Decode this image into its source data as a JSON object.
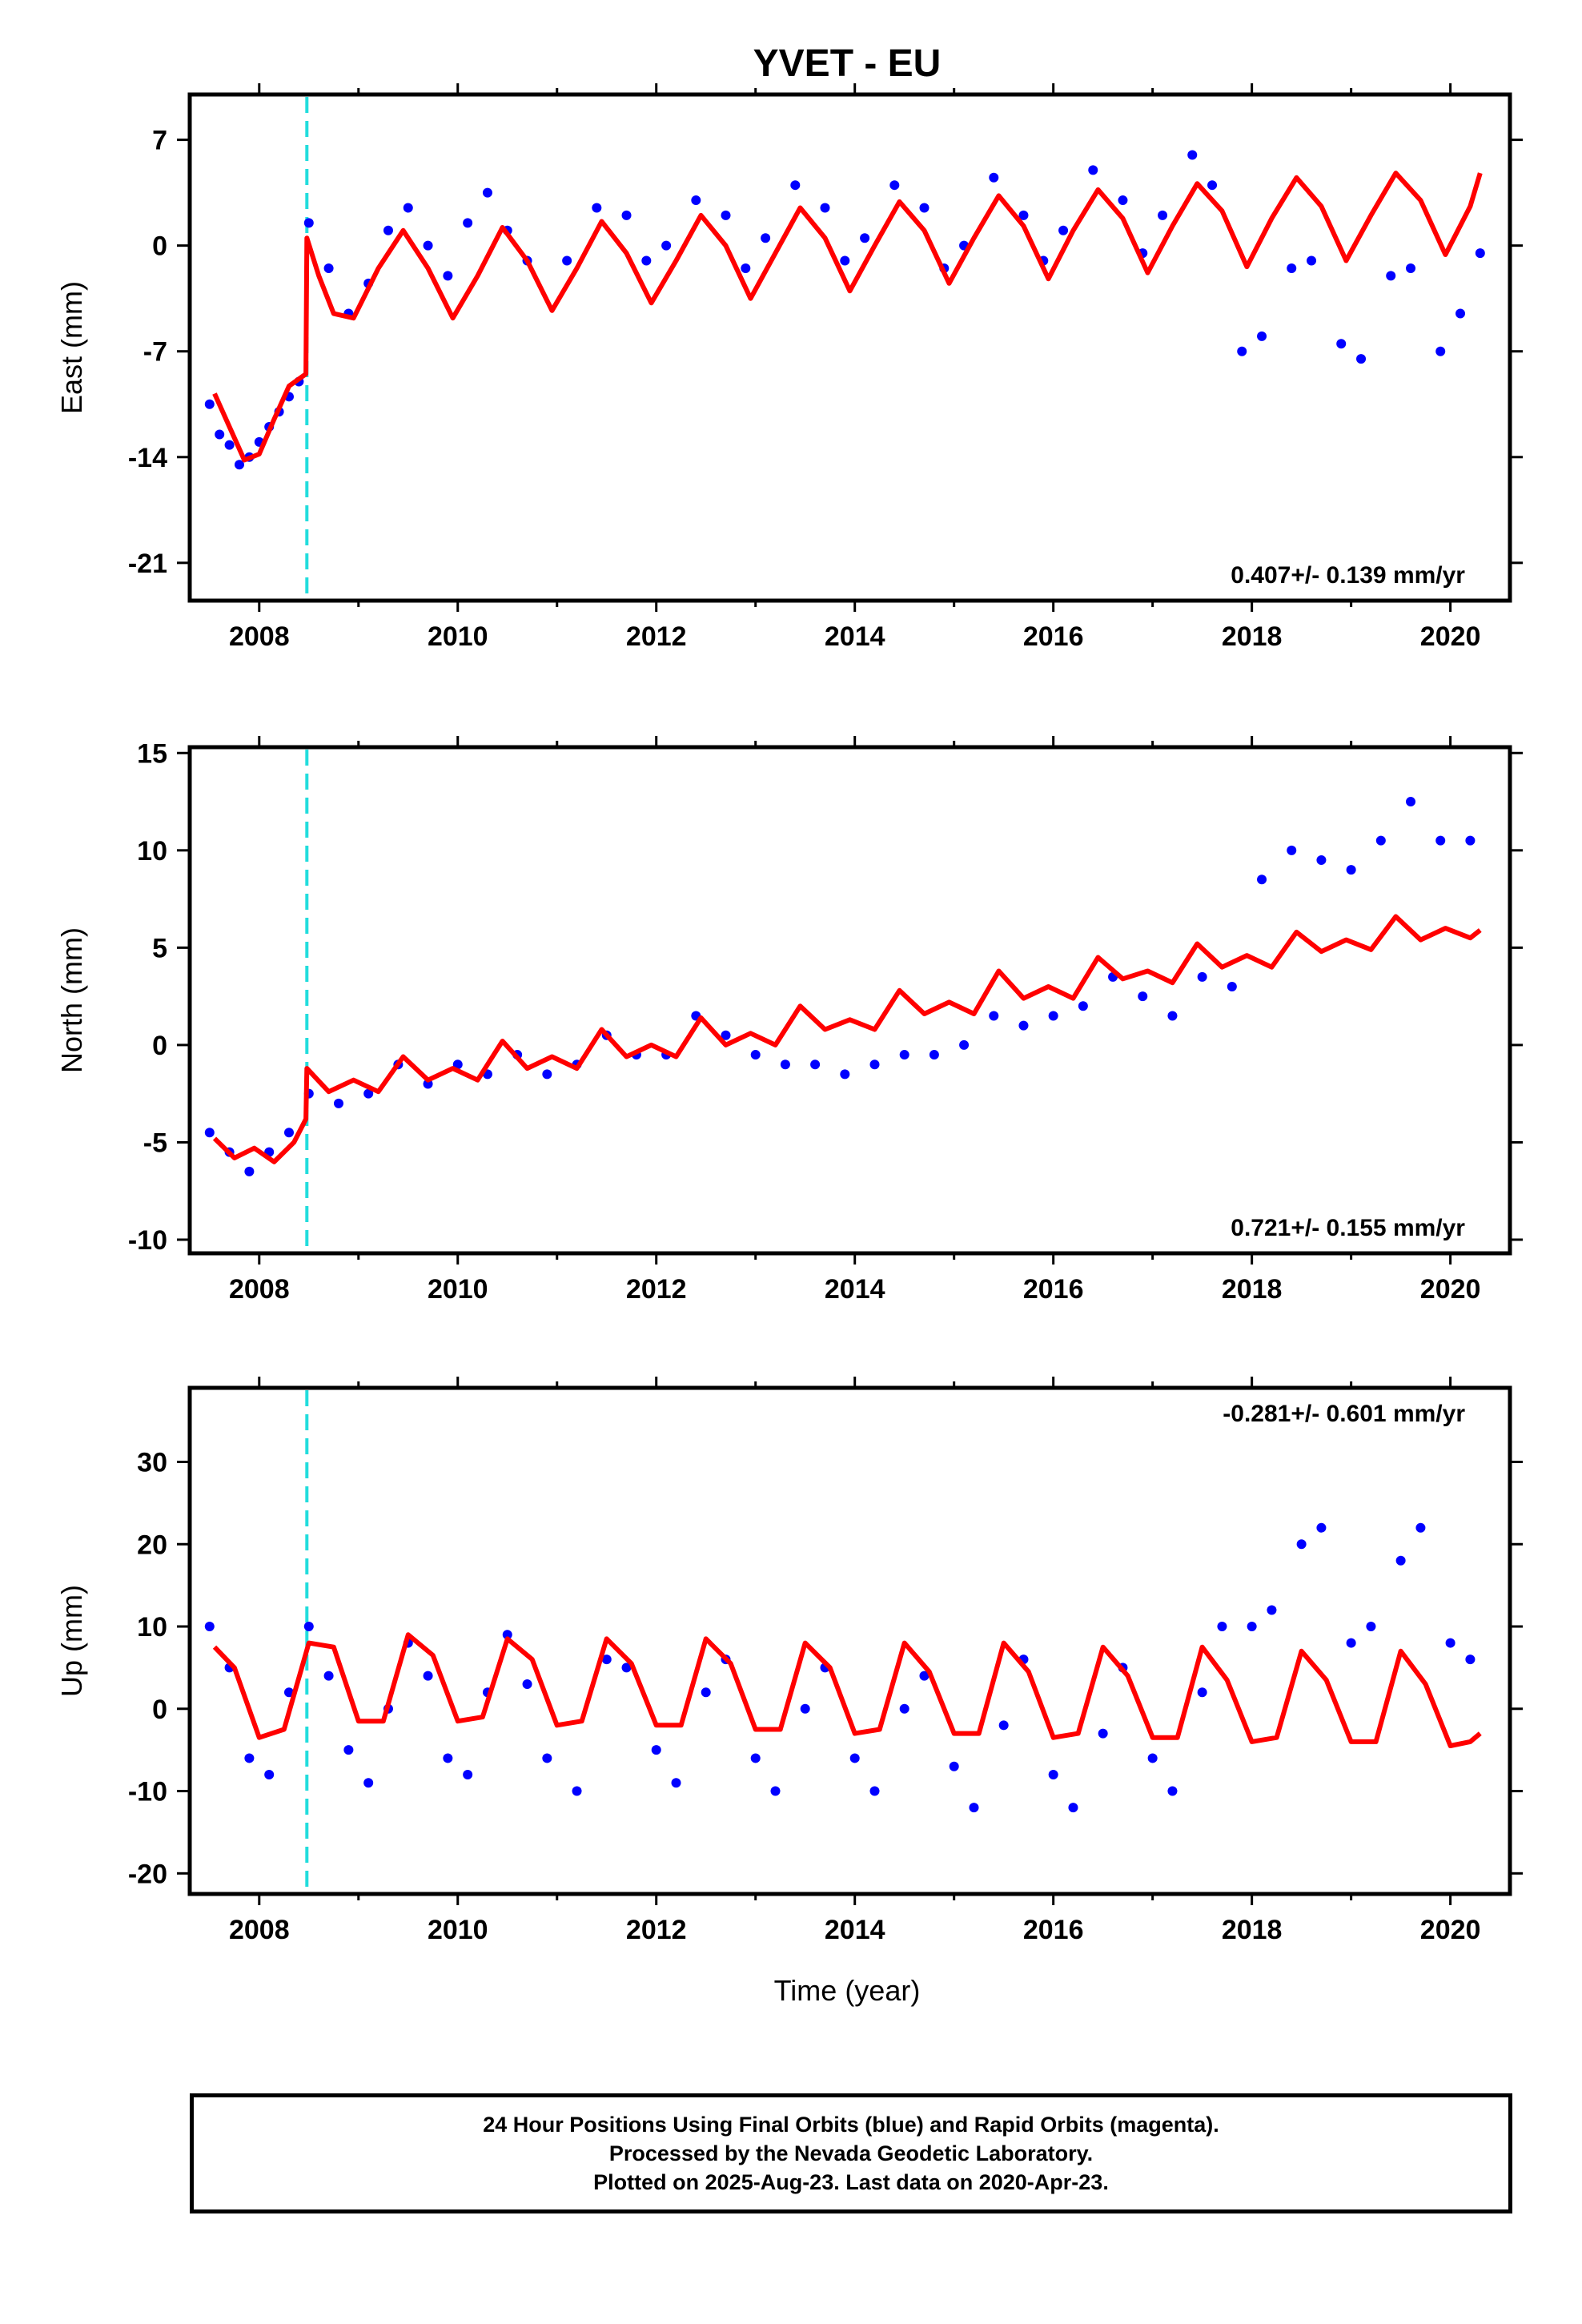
{
  "title": "YVET - EU",
  "xlabel": "Time (year)",
  "colors": {
    "points": "#0000ff",
    "model": "#ff0000",
    "event_line": "#22dddd",
    "frame": "#000000"
  },
  "chart_data": [
    {
      "type": "scatter",
      "panel": "east",
      "ylabel": "East (mm)",
      "rate_label": "0.407+/- 0.139 mm/yr",
      "rate_position": "bottom-right",
      "xlim": [
        2007.3,
        2020.6
      ],
      "ylim": [
        -23.5,
        10
      ],
      "yticks": [
        7,
        0,
        -7,
        -14,
        -21
      ],
      "xticks": [
        2008,
        2010,
        2012,
        2014,
        2016,
        2018,
        2020
      ],
      "event_line_x": 2008.48,
      "series": [
        {
          "name": "Final Orbits",
          "style": "points",
          "x": [
            2007.5,
            2007.6,
            2007.7,
            2007.8,
            2007.9,
            2008.0,
            2008.1,
            2008.2,
            2008.3,
            2008.4,
            2008.5,
            2008.7,
            2008.9,
            2009.1,
            2009.3,
            2009.5,
            2009.7,
            2009.9,
            2010.1,
            2010.3,
            2010.5,
            2010.7,
            2011.1,
            2011.4,
            2011.7,
            2011.9,
            2012.1,
            2012.4,
            2012.7,
            2012.9,
            2013.1,
            2013.4,
            2013.7,
            2013.9,
            2014.1,
            2014.4,
            2014.7,
            2014.9,
            2015.1,
            2015.4,
            2015.7,
            2015.9,
            2016.1,
            2016.4,
            2016.7,
            2016.9,
            2017.1,
            2017.4,
            2017.6,
            2017.9,
            2018.1,
            2018.4,
            2018.6,
            2018.9,
            2019.1,
            2019.4,
            2019.6,
            2019.9,
            2020.1,
            2020.3
          ],
          "y": [
            -10.5,
            -12.5,
            -13.2,
            -14.5,
            -14.0,
            -13.0,
            -12.0,
            -11.0,
            -10.0,
            -9.0,
            1.5,
            -1.5,
            -4.5,
            -2.5,
            1.0,
            2.5,
            0.0,
            -2.0,
            1.5,
            3.5,
            1.0,
            -1.0,
            -1.0,
            2.5,
            2.0,
            -1.0,
            0.0,
            3.0,
            2.0,
            -1.5,
            0.5,
            4.0,
            2.5,
            -1.0,
            0.5,
            4.0,
            2.5,
            -1.5,
            0.0,
            4.5,
            2.0,
            -1.0,
            1.0,
            5.0,
            3.0,
            -0.5,
            2.0,
            6.0,
            4.0,
            -7.0,
            -6.0,
            -1.5,
            -1.0,
            -6.5,
            -7.5,
            -2.0,
            -1.5,
            -7.0,
            -4.5,
            -0.5
          ]
        },
        {
          "name": "Model",
          "style": "line",
          "x": [
            2007.55,
            2007.7,
            2007.85,
            2008.0,
            2008.15,
            2008.3,
            2008.47,
            2008.48,
            2008.6,
            2008.75,
            2008.95,
            2009.2,
            2009.45,
            2009.7,
            2009.95,
            2010.2,
            2010.45,
            2010.7,
            2010.95,
            2011.2,
            2011.45,
            2011.7,
            2011.95,
            2012.2,
            2012.45,
            2012.7,
            2012.95,
            2013.2,
            2013.45,
            2013.7,
            2013.95,
            2014.2,
            2014.45,
            2014.7,
            2014.95,
            2015.2,
            2015.45,
            2015.7,
            2015.95,
            2016.2,
            2016.45,
            2016.7,
            2016.95,
            2017.2,
            2017.45,
            2017.7,
            2017.95,
            2018.2,
            2018.45,
            2018.7,
            2018.95,
            2019.2,
            2019.45,
            2019.7,
            2019.95,
            2020.2,
            2020.3
          ],
          "y": [
            -9.8,
            -12.0,
            -14.2,
            -13.8,
            -11.5,
            -9.3,
            -8.5,
            0.5,
            -2.0,
            -4.5,
            -4.8,
            -1.5,
            1.0,
            -1.5,
            -4.8,
            -2.0,
            1.2,
            -1.0,
            -4.3,
            -1.5,
            1.6,
            -0.5,
            -3.8,
            -1.0,
            2.0,
            0.0,
            -3.5,
            -0.5,
            2.5,
            0.5,
            -3.0,
            0.0,
            2.9,
            1.0,
            -2.5,
            0.5,
            3.3,
            1.3,
            -2.2,
            1.0,
            3.7,
            1.8,
            -1.8,
            1.3,
            4.1,
            2.3,
            -1.4,
            1.8,
            4.5,
            2.6,
            -1.0,
            2.0,
            4.8,
            3.0,
            -0.6,
            2.6,
            4.8
          ]
        }
      ]
    },
    {
      "type": "scatter",
      "panel": "north",
      "ylabel": "North (mm)",
      "rate_label": "0.721+/- 0.155 mm/yr",
      "rate_position": "bottom-right",
      "xlim": [
        2007.3,
        2020.6
      ],
      "ylim": [
        -10.7,
        15.3
      ],
      "yticks": [
        15,
        10,
        5,
        0,
        -5,
        -10
      ],
      "xticks": [
        2008,
        2010,
        2012,
        2014,
        2016,
        2018,
        2020
      ],
      "event_line_x": 2008.48,
      "series": [
        {
          "name": "Final Orbits",
          "style": "points",
          "x": [
            2007.5,
            2007.7,
            2007.9,
            2008.1,
            2008.3,
            2008.5,
            2008.8,
            2009.1,
            2009.4,
            2009.7,
            2010.0,
            2010.3,
            2010.6,
            2010.9,
            2011.2,
            2011.5,
            2011.8,
            2012.1,
            2012.4,
            2012.7,
            2013.0,
            2013.3,
            2013.6,
            2013.9,
            2014.2,
            2014.5,
            2014.8,
            2015.1,
            2015.4,
            2015.7,
            2016.0,
            2016.3,
            2016.6,
            2016.9,
            2017.2,
            2017.5,
            2017.8,
            2018.1,
            2018.4,
            2018.7,
            2019.0,
            2019.3,
            2019.6,
            2019.9,
            2020.2
          ],
          "y": [
            -4.5,
            -5.5,
            -6.5,
            -5.5,
            -4.5,
            -2.5,
            -3.0,
            -2.5,
            -1.0,
            -2.0,
            -1.0,
            -1.5,
            -0.5,
            -1.5,
            -1.0,
            0.5,
            -0.5,
            -0.5,
            1.5,
            0.5,
            -0.5,
            -1.0,
            -1.0,
            -1.5,
            -1.0,
            -0.5,
            -0.5,
            0.0,
            1.5,
            1.0,
            1.5,
            2.0,
            3.5,
            2.5,
            1.5,
            3.5,
            3.0,
            8.5,
            10.0,
            9.5,
            9.0,
            10.5,
            12.5,
            10.5,
            10.5
          ]
        },
        {
          "name": "Model",
          "style": "line",
          "x": [
            2007.55,
            2007.75,
            2007.95,
            2008.15,
            2008.35,
            2008.47,
            2008.48,
            2008.7,
            2008.95,
            2009.2,
            2009.45,
            2009.7,
            2009.95,
            2010.2,
            2010.45,
            2010.7,
            2010.95,
            2011.2,
            2011.45,
            2011.7,
            2011.95,
            2012.2,
            2012.45,
            2012.7,
            2012.95,
            2013.2,
            2013.45,
            2013.7,
            2013.95,
            2014.2,
            2014.45,
            2014.7,
            2014.95,
            2015.2,
            2015.45,
            2015.7,
            2015.95,
            2016.2,
            2016.45,
            2016.7,
            2016.95,
            2017.2,
            2017.45,
            2017.7,
            2017.95,
            2018.2,
            2018.45,
            2018.7,
            2018.95,
            2019.2,
            2019.45,
            2019.7,
            2019.95,
            2020.2,
            2020.3
          ],
          "y": [
            -4.8,
            -5.8,
            -5.3,
            -6.0,
            -5.0,
            -3.8,
            -1.2,
            -2.4,
            -1.8,
            -2.4,
            -0.6,
            -1.8,
            -1.2,
            -1.8,
            0.2,
            -1.2,
            -0.6,
            -1.2,
            0.8,
            -0.6,
            0.0,
            -0.6,
            1.4,
            0.0,
            0.6,
            0.0,
            2.0,
            0.8,
            1.3,
            0.8,
            2.8,
            1.6,
            2.2,
            1.6,
            3.8,
            2.4,
            3.0,
            2.4,
            4.5,
            3.4,
            3.8,
            3.2,
            5.2,
            4.0,
            4.6,
            4.0,
            5.8,
            4.8,
            5.4,
            4.9,
            6.6,
            5.4,
            6.0,
            5.5,
            5.9
          ]
        }
      ]
    },
    {
      "type": "scatter",
      "panel": "up",
      "ylabel": "Up (mm)",
      "rate_label": "-0.281+/- 0.601 mm/yr",
      "rate_position": "top-right",
      "xlim": [
        2007.3,
        2020.6
      ],
      "ylim": [
        -22.5,
        39
      ],
      "yticks": [
        30,
        20,
        10,
        0,
        -10,
        -20
      ],
      "xticks": [
        2008,
        2010,
        2012,
        2014,
        2016,
        2018,
        2020
      ],
      "event_line_x": 2008.48,
      "series": [
        {
          "name": "Final Orbits",
          "style": "points",
          "x": [
            2007.5,
            2007.7,
            2007.9,
            2008.1,
            2008.3,
            2008.5,
            2008.7,
            2008.9,
            2009.1,
            2009.3,
            2009.5,
            2009.7,
            2009.9,
            2010.1,
            2010.3,
            2010.5,
            2010.7,
            2010.9,
            2011.2,
            2011.5,
            2011.7,
            2012.0,
            2012.2,
            2012.5,
            2012.7,
            2013.0,
            2013.2,
            2013.5,
            2013.7,
            2014.0,
            2014.2,
            2014.5,
            2014.7,
            2015.0,
            2015.2,
            2015.5,
            2015.7,
            2016.0,
            2016.2,
            2016.5,
            2016.7,
            2017.0,
            2017.2,
            2017.5,
            2017.7,
            2018.0,
            2018.2,
            2018.5,
            2018.7,
            2019.0,
            2019.2,
            2019.5,
            2019.7,
            2020.0,
            2020.2
          ],
          "y": [
            10.0,
            5.0,
            -6.0,
            -8.0,
            2.0,
            10.0,
            4.0,
            -5.0,
            -9.0,
            0.0,
            8.0,
            4.0,
            -6.0,
            -8.0,
            2.0,
            9.0,
            3.0,
            -6.0,
            -10.0,
            6.0,
            5.0,
            -5.0,
            -9.0,
            2.0,
            6.0,
            -6.0,
            -10.0,
            0.0,
            5.0,
            -6.0,
            -10.0,
            0.0,
            4.0,
            -7.0,
            -12.0,
            -2.0,
            6.0,
            -8.0,
            -12.0,
            -3.0,
            5.0,
            -6.0,
            -10.0,
            2.0,
            10.0,
            10.0,
            12.0,
            20.0,
            22.0,
            8.0,
            10.0,
            18.0,
            22.0,
            8.0,
            6.0
          ]
        },
        {
          "name": "Model",
          "style": "line",
          "x": [
            2007.55,
            2007.75,
            2008.0,
            2008.25,
            2008.5,
            2008.75,
            2009.0,
            2009.25,
            2009.5,
            2009.75,
            2010.0,
            2010.25,
            2010.5,
            2010.75,
            2011.0,
            2011.25,
            2011.5,
            2011.75,
            2012.0,
            2012.25,
            2012.5,
            2012.75,
            2013.0,
            2013.25,
            2013.5,
            2013.75,
            2014.0,
            2014.25,
            2014.5,
            2014.75,
            2015.0,
            2015.25,
            2015.5,
            2015.75,
            2016.0,
            2016.25,
            2016.5,
            2016.75,
            2017.0,
            2017.25,
            2017.5,
            2017.75,
            2018.0,
            2018.25,
            2018.5,
            2018.75,
            2019.0,
            2019.25,
            2019.5,
            2019.75,
            2020.0,
            2020.2,
            2020.3
          ],
          "y": [
            7.5,
            5.0,
            -3.5,
            -2.5,
            8.0,
            7.5,
            -1.5,
            -1.5,
            9.0,
            6.5,
            -1.5,
            -1.0,
            8.5,
            6.0,
            -2.0,
            -1.5,
            8.5,
            5.5,
            -2.0,
            -2.0,
            8.5,
            5.5,
            -2.5,
            -2.5,
            8.0,
            5.0,
            -3.0,
            -2.5,
            8.0,
            4.5,
            -3.0,
            -3.0,
            8.0,
            4.5,
            -3.5,
            -3.0,
            7.5,
            4.0,
            -3.5,
            -3.5,
            7.5,
            3.5,
            -4.0,
            -3.5,
            7.0,
            3.5,
            -4.0,
            -4.0,
            7.0,
            3.0,
            -4.5,
            -4.0,
            -3.0
          ]
        }
      ]
    }
  ],
  "footer": {
    "line1": "24 Hour Positions Using Final Orbits (blue) and Rapid Orbits (magenta).",
    "line2": "Processed by the Nevada Geodetic Laboratory.",
    "line3": "Plotted on 2025-Aug-23. Last data on 2020-Apr-23."
  }
}
